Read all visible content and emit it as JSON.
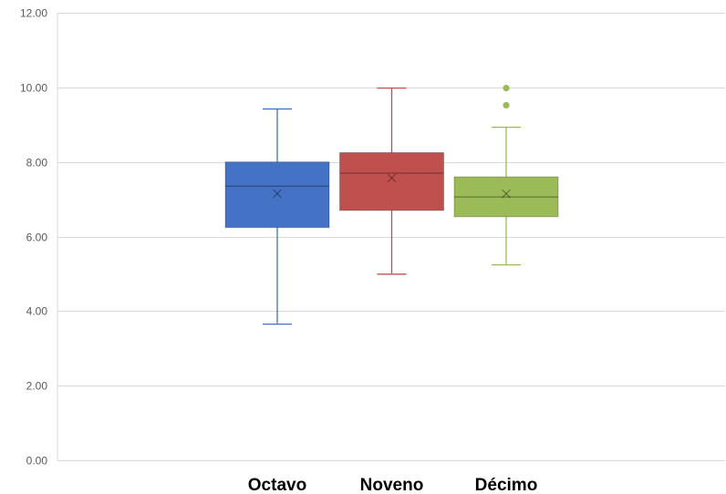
{
  "chart_data": {
    "type": "box",
    "title": "",
    "xlabel": "",
    "ylabel": "",
    "ylim": [
      0,
      12
    ],
    "y_ticks": [
      0,
      2,
      4,
      6,
      8,
      10,
      12
    ],
    "y_tick_labels": [
      "0.00",
      "2.00",
      "4.00",
      "6.00",
      "8.00",
      "10.00",
      "12.00"
    ],
    "grid": true,
    "legend": "none",
    "categories": [
      "Octavo",
      "Noveno",
      "Décimo"
    ],
    "series": [
      {
        "category": "Octavo",
        "color": "#4472c4",
        "whisker_low": 3.65,
        "q1": 6.24,
        "median": 7.35,
        "mean": 7.15,
        "q3": 8.0,
        "whisker_high": 9.42,
        "outliers": []
      },
      {
        "category": "Noveno",
        "color": "#c0504d",
        "whisker_low": 4.99,
        "q1": 6.7,
        "median": 7.7,
        "mean": 7.57,
        "q3": 8.25,
        "whisker_high": 9.98,
        "outliers": []
      },
      {
        "category": "Décimo",
        "color": "#9bbb59",
        "whisker_low": 5.24,
        "q1": 6.53,
        "median": 7.06,
        "mean": 7.15,
        "q3": 7.6,
        "whisker_high": 8.93,
        "outliers": [
          9.52,
          9.98
        ]
      }
    ]
  }
}
